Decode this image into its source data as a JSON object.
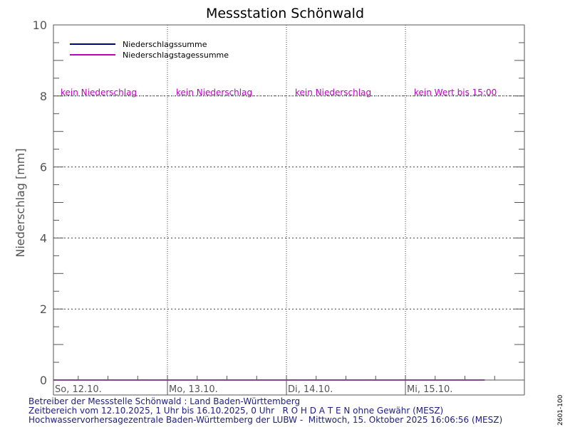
{
  "chart_data": {
    "type": "line",
    "title": "Messstation Schönwald",
    "ylabel": "Niederschlag [mm]",
    "ylim": [
      0,
      10
    ],
    "y_ticks": [
      "0",
      "2",
      "4",
      "6",
      "8",
      "10"
    ],
    "x_days": [
      "So, 12.10.",
      "Mo, 13.10.",
      "Di, 14.10.",
      "Mi, 15.10."
    ],
    "x_range": [
      "2025-10-12T01:00",
      "2025-10-16T00:00"
    ],
    "grid": true,
    "legend_position": "top-left",
    "series": [
      {
        "name": "Niederschlagssumme",
        "color": "#000080",
        "x": [
          "2025-10-12T01:00",
          "2025-10-15T16:00"
        ],
        "values": [
          0,
          0
        ]
      },
      {
        "name": "Niederschlagstagessumme",
        "color": "#c000c0",
        "x": [
          "2025-10-12T01:00",
          "2025-10-15T16:00"
        ],
        "values": [
          0,
          0
        ]
      }
    ],
    "annotations": [
      {
        "day": 0,
        "text": "kein Niederschlag"
      },
      {
        "day": 1,
        "text": "kein Niederschlag"
      },
      {
        "day": 2,
        "text": "kein Niederschlag"
      },
      {
        "day": 3,
        "text": "kein Wert bis 15:00"
      }
    ],
    "annotation_level": 8,
    "annotation_color": "#c000c0"
  },
  "footer": {
    "line1": "Betreiber der Messstelle Schönwald : Land Baden-Württemberg",
    "line2": "Zeitbereich vom 12.10.2025, 1 Uhr bis 16.10.2025, 0 Uhr   R O H D A T E N ohne Gewähr (MESZ)",
    "line3": "Hochwasservorhersagezentrale Baden-Württemberg der LUBW -  Mittwoch, 15. Oktober 2025 16:06:56 (MESZ)"
  },
  "side_code": "2601-100",
  "colors": {
    "axis_text": "#555555",
    "footer_text": "#202080"
  }
}
